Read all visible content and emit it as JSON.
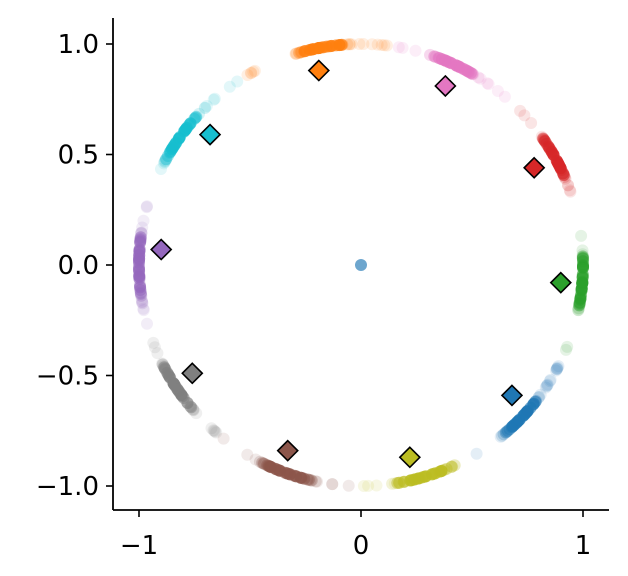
{
  "chart_data": {
    "type": "scatter",
    "title": "",
    "xlabel": "",
    "ylabel": "",
    "xlim": [
      -1.1,
      1.1
    ],
    "ylim": [
      -1.1,
      1.1
    ],
    "grid": false,
    "legend": "none",
    "x_ticks": [
      {
        "value": -1,
        "label": "−1"
      },
      {
        "value": 0,
        "label": "0"
      },
      {
        "value": 1,
        "label": "1"
      }
    ],
    "y_ticks": [
      {
        "value": 1.0,
        "label": "1.0"
      },
      {
        "value": 0.5,
        "label": "0.5"
      },
      {
        "value": 0.0,
        "label": "0.0"
      },
      {
        "value": -0.5,
        "label": "−0.5"
      },
      {
        "value": -1.0,
        "label": "−1.0"
      }
    ],
    "center_point": {
      "x": 0,
      "y": 0,
      "color": "#1f77b4"
    },
    "clusters": [
      {
        "color": "#ff7f0e",
        "angle_start": 93,
        "angle_end": 107,
        "marker": {
          "x": -0.19,
          "y": 0.88
        }
      },
      {
        "color": "#e377c2",
        "angle_start": 58,
        "angle_end": 72,
        "marker": {
          "x": 0.38,
          "y": 0.81
        }
      },
      {
        "color": "#d62728",
        "angle_start": 22,
        "angle_end": 36,
        "marker": {
          "x": 0.78,
          "y": 0.44
        }
      },
      {
        "color": "#2ca02c",
        "angle_start": -12,
        "angle_end": 3,
        "marker": {
          "x": 0.9,
          "y": -0.08
        }
      },
      {
        "color": "#1f77b4",
        "angle_start": -51,
        "angle_end": -37,
        "marker": {
          "x": 0.68,
          "y": -0.59
        }
      },
      {
        "color": "#bcbd22",
        "angle_start": -82,
        "angle_end": -65,
        "marker": {
          "x": 0.22,
          "y": -0.87
        }
      },
      {
        "color": "#8c564b",
        "angle_start": -118,
        "angle_end": -102,
        "marker": {
          "x": -0.33,
          "y": -0.84
        }
      },
      {
        "color": "#7f7f7f",
        "angle_start": -154,
        "angle_end": -139,
        "marker": {
          "x": -0.76,
          "y": -0.49
        }
      },
      {
        "color": "#9467bd",
        "angle_start": 170,
        "angle_end": 190,
        "marker": {
          "x": -0.9,
          "y": 0.07
        }
      },
      {
        "color": "#17becf",
        "angle_start": 137,
        "angle_end": 152,
        "marker": {
          "x": -0.68,
          "y": 0.59
        }
      }
    ]
  }
}
